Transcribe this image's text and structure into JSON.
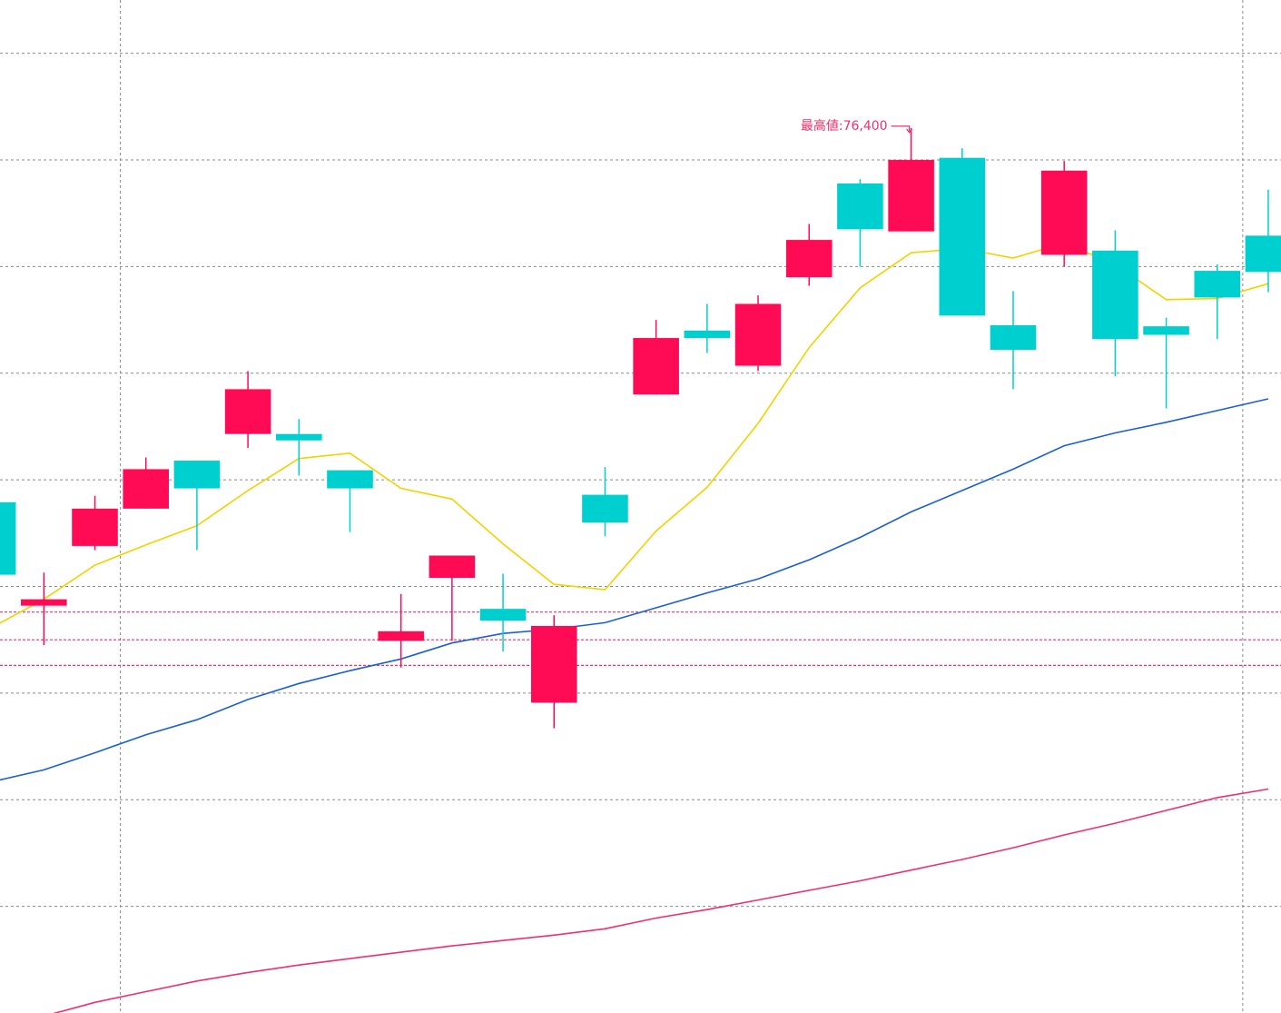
{
  "chart_data": {
    "type": "candlestick",
    "x": [
      0,
      1,
      2,
      3,
      4,
      5,
      6,
      7,
      8,
      9,
      10,
      11,
      12,
      13,
      14,
      15,
      16,
      17,
      18,
      19,
      20,
      21,
      22,
      23,
      24,
      25
    ],
    "xlim": [
      0.14,
      25.25
    ],
    "xticks": [
      2.5,
      24.5
    ],
    "ylim": [
      68100,
      77600
    ],
    "yticks": [
      77100,
      76100,
      75100,
      74100,
      73100,
      72100,
      71100,
      70100,
      69100
    ],
    "grid": true,
    "up_color": "#ff0b55",
    "down_color": "#00cfcf",
    "open": [
      72890,
      71920,
      72480,
      72830,
      73280,
      73530,
      73530,
      73190,
      71590,
      72180,
      71890,
      71010,
      72960,
      73900,
      74500,
      74170,
      75000,
      75880,
      75430,
      76120,
      74550,
      75210,
      75250,
      74540,
      75060,
      75390
    ],
    "high": [
      72890,
      72230,
      72950,
      73310,
      73280,
      74120,
      73670,
      73190,
      72030,
      72390,
      72220,
      71830,
      73220,
      74600,
      74750,
      74830,
      75500,
      75920,
      76400,
      76210,
      74870,
      76090,
      75440,
      74620,
      75120,
      75820
    ],
    "low": [
      72210,
      71550,
      72440,
      72830,
      72440,
      73400,
      73140,
      72610,
      71340,
      71590,
      71490,
      70770,
      72570,
      73900,
      74290,
      74120,
      74920,
      75100,
      75430,
      74640,
      73950,
      75100,
      74070,
      73770,
      74420,
      74860
    ],
    "close": [
      72210,
      71980,
      72830,
      73200,
      73020,
      73950,
      73470,
      73020,
      71680,
      72390,
      71780,
      71730,
      72700,
      74430,
      74430,
      74750,
      75350,
      75450,
      76100,
      74640,
      74320,
      76000,
      74420,
      74460,
      74810,
      75050
    ],
    "series": [
      {
        "color": "#f2d200",
        "values": [
          71720,
          71980,
          72300,
          72490,
          72670,
          73000,
          73300,
          73350,
          73020,
          72920,
          72500,
          72120,
          72070,
          72620,
          73030,
          73630,
          74340,
          74900,
          75230,
          75270,
          75180,
          75320,
          75120,
          74790,
          74800,
          74940
        ]
      },
      {
        "color": "#1a5fd6",
        "values": [
          70270,
          70380,
          70540,
          70710,
          70850,
          71040,
          71190,
          71310,
          71420,
          71570,
          71660,
          71700,
          71760,
          71900,
          72040,
          72170,
          72350,
          72560,
          72800,
          73000,
          73200,
          73420,
          73540,
          73640,
          73750,
          73860
        ]
      },
      {
        "color": "#f0306e",
        "values": [
          null,
          68070,
          68200,
          68300,
          68400,
          68480,
          68550,
          68610,
          68670,
          68730,
          68780,
          68830,
          68890,
          68990,
          69070,
          69160,
          69250,
          69340,
          69440,
          69540,
          69650,
          69770,
          69880,
          70000,
          70120,
          70200
        ]
      }
    ],
    "levels": {
      "color": "#f0306e",
      "values": [
        71860,
        71600,
        71360
      ]
    },
    "annotations": [
      {
        "text": "最高値:76,400",
        "x": 18,
        "value": 76400,
        "color": "#f0306e"
      }
    ]
  }
}
